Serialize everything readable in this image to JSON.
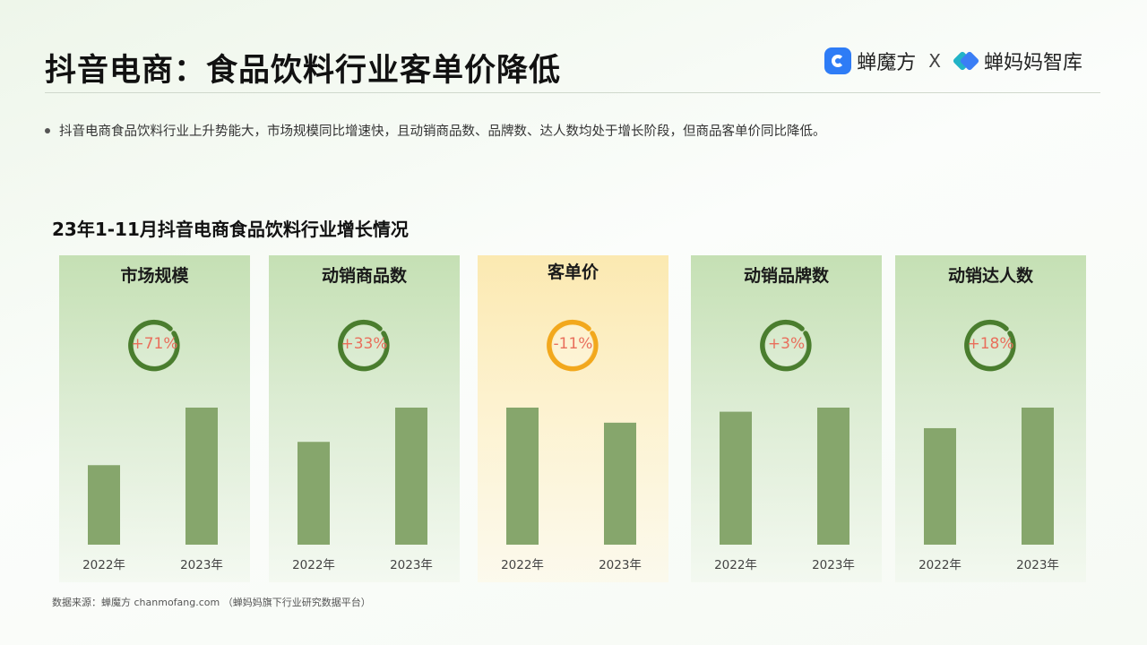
{
  "title": "抖音电商：食品饮料行业客单价降低",
  "logos": {
    "brand1": "蝉魔方",
    "separator": "X",
    "brand2": "蝉妈妈智库"
  },
  "bullet": "抖音电商食品饮料行业上升势能大，市场规模同比增速快，且动销商品数、品牌数、达人数均处于增长阶段，但商品客单价同比降低。",
  "section_title": "23年1-11月抖音电商食品饮料行业增长情况",
  "source": "数据来源：蝉魔方 chanmofang.com （蝉妈妈旗下行业研究数据平台）",
  "colors": {
    "bar": "#86a66c",
    "ring_green": "#4a7d2e",
    "ring_orange": "#f2a81d",
    "change_text": "#e96f5c"
  },
  "chart_data": [
    {
      "type": "bar",
      "title": "市场规模",
      "categories": [
        "2022年",
        "2023年"
      ],
      "values": [
        58,
        100
      ],
      "change": "+71%",
      "highlight": false
    },
    {
      "type": "bar",
      "title": "动销商品数",
      "categories": [
        "2022年",
        "2023年"
      ],
      "values": [
        75,
        100
      ],
      "change": "+33%",
      "highlight": false
    },
    {
      "type": "bar",
      "title": "客单价",
      "categories": [
        "2022年",
        "2023年"
      ],
      "values": [
        100,
        89
      ],
      "change": "-11%",
      "highlight": true
    },
    {
      "type": "bar",
      "title": "动销品牌数",
      "categories": [
        "2022年",
        "2023年"
      ],
      "values": [
        97,
        100
      ],
      "change": "+3%",
      "highlight": false
    },
    {
      "type": "bar",
      "title": "动销达人数",
      "categories": [
        "2022年",
        "2023年"
      ],
      "values": [
        85,
        100
      ],
      "change": "+18%",
      "highlight": false
    }
  ]
}
